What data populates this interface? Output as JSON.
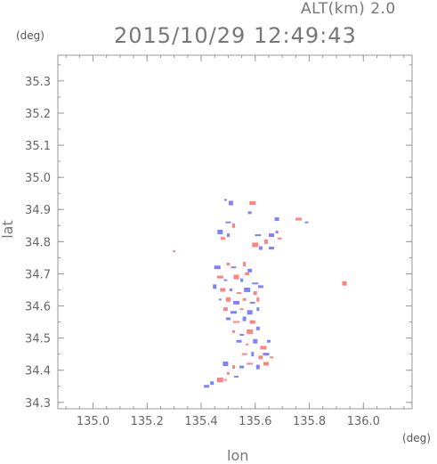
{
  "header": {
    "altitude_label": "ALT(km) 2.0",
    "timestamp": "2015/10/29 12:49:43"
  },
  "chart_data": {
    "type": "scatter",
    "xlabel": "lon",
    "ylabel": "lat",
    "x_unit": "(deg)",
    "y_unit": "(deg)",
    "xlim": [
      134.87,
      136.18
    ],
    "ylim": [
      34.28,
      35.38
    ],
    "x_ticks": [
      135.0,
      135.2,
      135.4,
      135.6,
      135.8,
      136.0
    ],
    "y_ticks": [
      34.3,
      34.4,
      34.5,
      34.6,
      34.7,
      34.8,
      34.9,
      35.0,
      35.1,
      35.2,
      35.3
    ],
    "x_tick_labels": [
      "135.0",
      "135.2",
      "135.4",
      "135.6",
      "135.8",
      "136.0"
    ],
    "y_tick_labels": [
      "34.3",
      "34.4",
      "34.5",
      "34.6",
      "34.7",
      "34.8",
      "34.9",
      "35.0",
      "35.1",
      "35.2",
      "35.3"
    ],
    "grid": false,
    "colors": {
      "positive": "#ff6b6b",
      "negative": "#6b6bff",
      "frame": "#999999"
    },
    "series": [
      {
        "values": [
          [
            135.49,
            34.93,
            "n"
          ],
          [
            135.51,
            34.92,
            "n"
          ],
          [
            135.59,
            34.92,
            "p"
          ],
          [
            135.58,
            34.89,
            "n"
          ],
          [
            135.5,
            34.86,
            "n"
          ],
          [
            135.52,
            34.85,
            "p"
          ],
          [
            135.68,
            34.87,
            "n"
          ],
          [
            135.76,
            34.87,
            "p"
          ],
          [
            135.79,
            34.86,
            "n"
          ],
          [
            135.47,
            34.83,
            "n"
          ],
          [
            135.5,
            34.82,
            "n"
          ],
          [
            135.48,
            34.81,
            "p"
          ],
          [
            135.61,
            34.82,
            "n"
          ],
          [
            135.64,
            34.8,
            "p"
          ],
          [
            135.66,
            34.82,
            "n"
          ],
          [
            135.68,
            34.83,
            "n"
          ],
          [
            135.69,
            34.81,
            "p"
          ],
          [
            135.6,
            34.79,
            "p"
          ],
          [
            135.62,
            34.78,
            "n"
          ],
          [
            135.66,
            34.78,
            "n"
          ],
          [
            135.3,
            34.77,
            "p"
          ],
          [
            135.93,
            34.67,
            "p"
          ],
          [
            135.46,
            34.72,
            "n"
          ],
          [
            135.5,
            34.73,
            "p"
          ],
          [
            135.52,
            34.72,
            "n"
          ],
          [
            135.56,
            34.73,
            "p"
          ],
          [
            135.58,
            34.71,
            "n"
          ],
          [
            135.47,
            34.69,
            "p"
          ],
          [
            135.49,
            34.68,
            "n"
          ],
          [
            135.53,
            34.69,
            "p"
          ],
          [
            135.55,
            34.68,
            "n"
          ],
          [
            135.57,
            34.7,
            "p"
          ],
          [
            135.6,
            34.67,
            "n"
          ],
          [
            135.45,
            34.66,
            "n"
          ],
          [
            135.48,
            34.65,
            "p"
          ],
          [
            135.51,
            34.65,
            "n"
          ],
          [
            135.54,
            34.64,
            "p"
          ],
          [
            135.57,
            34.65,
            "n"
          ],
          [
            135.6,
            34.64,
            "p"
          ],
          [
            135.62,
            34.66,
            "n"
          ],
          [
            135.47,
            34.62,
            "n"
          ],
          [
            135.5,
            34.62,
            "p"
          ],
          [
            135.53,
            34.61,
            "n"
          ],
          [
            135.56,
            34.62,
            "p"
          ],
          [
            135.59,
            34.61,
            "n"
          ],
          [
            135.61,
            34.62,
            "p"
          ],
          [
            135.49,
            34.59,
            "p"
          ],
          [
            135.52,
            34.58,
            "n"
          ],
          [
            135.55,
            34.59,
            "p"
          ],
          [
            135.58,
            34.58,
            "n"
          ],
          [
            135.61,
            34.59,
            "n"
          ],
          [
            135.5,
            34.56,
            "n"
          ],
          [
            135.53,
            34.55,
            "p"
          ],
          [
            135.56,
            34.56,
            "n"
          ],
          [
            135.59,
            34.55,
            "p"
          ],
          [
            135.52,
            34.52,
            "p"
          ],
          [
            135.55,
            34.51,
            "n"
          ],
          [
            135.58,
            34.52,
            "p"
          ],
          [
            135.61,
            34.53,
            "n"
          ],
          [
            135.54,
            34.49,
            "n"
          ],
          [
            135.57,
            34.48,
            "p"
          ],
          [
            135.6,
            34.49,
            "n"
          ],
          [
            135.63,
            34.47,
            "p"
          ],
          [
            135.65,
            34.49,
            "n"
          ],
          [
            135.56,
            34.45,
            "p"
          ],
          [
            135.59,
            34.45,
            "n"
          ],
          [
            135.62,
            34.44,
            "p"
          ],
          [
            135.64,
            34.45,
            "n"
          ],
          [
            135.66,
            34.44,
            "p"
          ],
          [
            135.49,
            34.42,
            "n"
          ],
          [
            135.52,
            34.41,
            "p"
          ],
          [
            135.55,
            34.41,
            "n"
          ],
          [
            135.58,
            34.42,
            "p"
          ],
          [
            135.61,
            34.41,
            "n"
          ],
          [
            135.64,
            34.42,
            "p"
          ],
          [
            135.5,
            34.39,
            "p"
          ],
          [
            135.53,
            34.38,
            "n"
          ],
          [
            135.47,
            34.37,
            "p"
          ],
          [
            135.44,
            34.36,
            "n"
          ],
          [
            135.42,
            34.35,
            "n"
          ],
          [
            135.49,
            34.37,
            "p"
          ]
        ]
      }
    ]
  }
}
